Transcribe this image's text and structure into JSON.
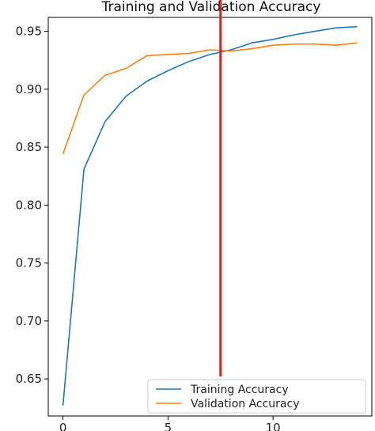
{
  "chart_data": {
    "type": "line",
    "title": "Training and Validation Accuracy",
    "xlabel": "",
    "ylabel": "",
    "xlim": [
      -0.7,
      14.7
    ],
    "ylim": [
      0.618,
      0.962
    ],
    "xticks": [
      0,
      5,
      10
    ],
    "yticks": [
      0.65,
      0.7,
      0.75,
      0.8,
      0.85,
      0.9,
      0.95
    ],
    "ytick_labels": [
      "0.65",
      "0.70",
      "0.75",
      "0.80",
      "0.85",
      "0.90",
      "0.95"
    ],
    "xtick_labels": [
      "0",
      "5",
      "10"
    ],
    "grid": false,
    "legend_position": "lower-right",
    "vertical_marker_x": 7.5,
    "series": [
      {
        "name": "Training Accuracy",
        "color": "#1f77b4",
        "x": [
          0,
          1,
          2,
          3,
          4,
          5,
          6,
          7,
          8,
          9,
          10,
          11,
          12,
          13,
          14
        ],
        "values": [
          0.627,
          0.831,
          0.872,
          0.894,
          0.907,
          0.916,
          0.924,
          0.93,
          0.934,
          0.94,
          0.943,
          0.947,
          0.95,
          0.953,
          0.954
        ]
      },
      {
        "name": "Validation Accuracy",
        "color": "#ff7f0e",
        "x": [
          0,
          1,
          2,
          3,
          4,
          5,
          6,
          7,
          8,
          9,
          10,
          11,
          12,
          13,
          14
        ],
        "values": [
          0.844,
          0.895,
          0.912,
          0.918,
          0.929,
          0.93,
          0.931,
          0.934,
          0.933,
          0.935,
          0.938,
          0.939,
          0.939,
          0.938,
          0.94
        ]
      }
    ],
    "marker_color": "#d62020"
  }
}
